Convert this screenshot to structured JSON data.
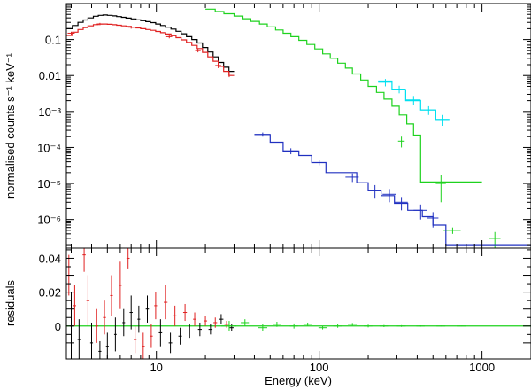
{
  "chart_data": {
    "type": "line",
    "xlabel": "Energy (keV)",
    "xscale": "log",
    "xlim": [
      2.8,
      2000
    ],
    "x_tick_labels": [
      {
        "value": 10,
        "label": "10"
      },
      {
        "value": 100,
        "label": "100"
      },
      {
        "value": 1000,
        "label": "1000"
      }
    ],
    "panels": [
      {
        "id": "spectrum",
        "ylabel": "normalised counts s⁻¹ keV⁻¹",
        "yscale": "log",
        "ylim": [
          1.6e-07,
          1.0
        ],
        "y_tick_labels": [
          {
            "value": 0.1,
            "label": "0.1"
          },
          {
            "value": 0.01,
            "label": "0.01"
          },
          {
            "value": 0.001,
            "label": "10⁻³"
          },
          {
            "value": 0.0001,
            "label": "10⁻⁴"
          },
          {
            "value": 1e-05,
            "label": "10⁻⁵"
          },
          {
            "value": 1e-06,
            "label": "10⁻⁶"
          }
        ],
        "series": [
          {
            "color": "#000000",
            "model_edges": [
              2.8,
              3.05,
              3.3,
              3.55,
              3.8,
              4.1,
              4.4,
              4.7,
              5.0,
              5.35,
              5.7,
              6.1,
              6.5,
              7.0,
              7.5,
              8.0,
              8.6,
              9.2,
              9.9,
              10.6,
              11.4,
              12.3,
              13.2,
              14.2,
              15.3,
              16.5,
              17.8,
              19.2,
              20.7,
              22.3,
              24.0,
              25.9,
              27.9,
              30.0
            ],
            "model_values": [
              0.2,
              0.245,
              0.3,
              0.35,
              0.4,
              0.445,
              0.47,
              0.48,
              0.47,
              0.455,
              0.435,
              0.415,
              0.395,
              0.375,
              0.355,
              0.335,
              0.315,
              0.295,
              0.27,
              0.245,
              0.22,
              0.195,
              0.17,
              0.145,
              0.12,
              0.1,
              0.08,
              0.06,
              0.045,
              0.033,
              0.023,
              0.017,
              0.013
            ]
          },
          {
            "color": "#e02020",
            "model_edges": [
              2.8,
              3.05,
              3.3,
              3.55,
              3.8,
              4.1,
              4.4,
              4.7,
              5.0,
              5.35,
              5.7,
              6.1,
              6.5,
              7.0,
              7.5,
              8.0,
              8.6,
              9.2,
              9.9,
              10.6,
              11.4,
              12.3,
              13.2,
              14.2,
              15.3,
              16.5,
              17.8,
              19.2,
              20.7,
              22.3,
              24.0,
              25.9,
              27.9,
              30.0
            ],
            "model_values": [
              0.13,
              0.16,
              0.19,
              0.215,
              0.24,
              0.26,
              0.27,
              0.27,
              0.265,
              0.258,
              0.25,
              0.24,
              0.23,
              0.22,
              0.21,
              0.2,
              0.19,
              0.18,
              0.168,
              0.155,
              0.142,
              0.128,
              0.113,
              0.098,
              0.083,
              0.069,
              0.056,
              0.044,
              0.033,
              0.025,
              0.018,
              0.013,
              0.01
            ],
            "points": [
              {
                "x": 3.0,
                "y": 0.15,
                "xerr": 0.15,
                "yerr": 0.015
              },
              {
                "x": 4.5,
                "y": 0.27,
                "xerr": 0.2,
                "yerr": 0.02
              },
              {
                "x": 7.0,
                "y": 0.22,
                "xerr": 0.3,
                "yerr": 0.02
              },
              {
                "x": 12.0,
                "y": 0.12,
                "xerr": 0.5,
                "yerr": 0.012
              },
              {
                "x": 18.0,
                "y": 0.05,
                "xerr": 0.7,
                "yerr": 0.006
              },
              {
                "x": 24.0,
                "y": 0.019,
                "xerr": 1.0,
                "yerr": 0.003
              },
              {
                "x": 28.0,
                "y": 0.011,
                "xerr": 1.0,
                "yerr": 0.002
              }
            ]
          },
          {
            "color": "#1ed21e",
            "model_edges": [
              20,
              23,
              26,
              30,
              34,
              38,
              43,
              48,
              54,
              60,
              67,
              75,
              84,
              94,
              105,
              117,
              130,
              145,
              160,
              180,
              200,
              225,
              250,
              280,
              310,
              345,
              380,
              420,
              1000
            ],
            "model_values": [
              0.7,
              0.6,
              0.52,
              0.45,
              0.38,
              0.32,
              0.27,
              0.225,
              0.185,
              0.15,
              0.12,
              0.095,
              0.073,
              0.055,
              0.04,
              0.03,
              0.022,
              0.016,
              0.011,
              0.0075,
              0.005,
              0.0034,
              0.0022,
              0.0014,
              0.0008,
              0.00045,
              0.00022,
              1.1e-05
            ],
            "points": [
              {
                "x": 320,
                "y": 0.00015,
                "xerr": 15,
                "yerr": 5e-05
              },
              {
                "x": 560,
                "y": 1e-05,
                "xerr": 40,
                "yerr": 7e-06
              },
              {
                "x": 660,
                "y": 5e-07,
                "xerr": 80,
                "yerr": 1e-07
              },
              {
                "x": 1200,
                "y": 3e-07,
                "xerr": 100,
                "yerr": 1.5e-07
              }
            ]
          },
          {
            "color": "#00e0f0",
            "model_edges": [
              230,
              280,
              340,
              420,
              520,
              630
            ],
            "model_values": [
              0.007,
              0.004,
              0.002,
              0.0011,
              0.0006
            ],
            "points": [
              {
                "x": 255,
                "y": 0.0065,
                "xerr": 25,
                "yerr": 0.0015
              },
              {
                "x": 310,
                "y": 0.0042,
                "xerr": 30,
                "yerr": 0.001
              },
              {
                "x": 380,
                "y": 0.0021,
                "xerr": 40,
                "yerr": 0.0006
              },
              {
                "x": 470,
                "y": 0.0011,
                "xerr": 50,
                "yerr": 0.0003
              },
              {
                "x": 575,
                "y": 0.0006,
                "xerr": 55,
                "yerr": 0.0002
              }
            ]
          },
          {
            "color": "#2030c0",
            "model_edges": [
              40,
              50,
              60,
              75,
              90,
              110,
              140,
              170,
              200,
              240,
              290,
              350,
              430,
              500,
              600,
              2000
            ],
            "model_values": [
              0.00023,
              0.00014,
              8e-05,
              6e-05,
              3.8e-05,
              2e-05,
              2e-05,
              1.05e-05,
              6.5e-06,
              4.6e-06,
              2.8e-06,
              1.8e-06,
              1.2e-06,
              7e-07,
              2e-07
            ],
            "points": [
              {
                "x": 45,
                "y": 0.00023,
                "xerr": 5,
                "yerr": 3e-05
              },
              {
                "x": 67,
                "y": 8e-05,
                "xerr": 7,
                "yerr": 1.5e-05
              },
              {
                "x": 100,
                "y": 3.8e-05,
                "xerr": 10,
                "yerr": 6e-06
              },
              {
                "x": 160,
                "y": 1.5e-05,
                "xerr": 15,
                "yerr": 4e-06
              },
              {
                "x": 220,
                "y": 6.5e-06,
                "xerr": 20,
                "yerr": 2.5e-06
              },
              {
                "x": 270,
                "y": 5e-06,
                "xerr": 25,
                "yerr": 2e-06
              },
              {
                "x": 320,
                "y": 3e-06,
                "xerr": 30,
                "yerr": 1.2e-06
              },
              {
                "x": 420,
                "y": 1.8e-06,
                "xerr": 40,
                "yerr": 8e-07
              },
              {
                "x": 500,
                "y": 1.1e-06,
                "xerr": 40,
                "yerr": 5e-07
              }
            ]
          }
        ]
      },
      {
        "id": "residuals",
        "ylabel": "residuals",
        "yscale": "linear",
        "ylim": [
          -0.0195,
          0.046
        ],
        "y_tick_labels": [
          {
            "value": 0.04,
            "label": "0.04"
          },
          {
            "value": 0.02,
            "label": "0.02"
          },
          {
            "value": 0,
            "label": "0"
          }
        ],
        "zero_line_color": "#1ed21e",
        "points": [
          {
            "x": 2.9,
            "y": 0.03,
            "yerr": 0.012,
            "xerr": 0.06,
            "color": "#e02020"
          },
          {
            "x": 3.0,
            "y": 0.0,
            "yerr": 0.02,
            "xerr": 0.06,
            "color": "#000000"
          },
          {
            "x": 3.15,
            "y": 0.012,
            "yerr": 0.012,
            "xerr": 0.06,
            "color": "#e02020"
          },
          {
            "x": 3.35,
            "y": -0.008,
            "yerr": 0.012,
            "xerr": 0.07,
            "color": "#000000"
          },
          {
            "x": 3.6,
            "y": 0.042,
            "yerr": 0.01,
            "xerr": 0.08,
            "color": "#e02020"
          },
          {
            "x": 3.8,
            "y": 0.015,
            "yerr": 0.015,
            "xerr": 0.08,
            "color": "#e02020"
          },
          {
            "x": 4.0,
            "y": -0.01,
            "yerr": 0.012,
            "xerr": 0.08,
            "color": "#000000"
          },
          {
            "x": 4.3,
            "y": 0.0,
            "yerr": 0.01,
            "xerr": 0.09,
            "color": "#e02020"
          },
          {
            "x": 4.5,
            "y": -0.015,
            "yerr": 0.006,
            "xerr": 0.09,
            "color": "#000000"
          },
          {
            "x": 4.8,
            "y": 0.005,
            "yerr": 0.01,
            "xerr": 0.1,
            "color": "#e02020"
          },
          {
            "x": 5.0,
            "y": -0.012,
            "yerr": 0.008,
            "xerr": 0.1,
            "color": "#000000"
          },
          {
            "x": 5.3,
            "y": 0.018,
            "yerr": 0.012,
            "xerr": 0.1,
            "color": "#e02020"
          },
          {
            "x": 5.6,
            "y": -0.005,
            "yerr": 0.01,
            "xerr": 0.1,
            "color": "#000000"
          },
          {
            "x": 6.0,
            "y": 0.024,
            "yerr": 0.014,
            "xerr": 0.12,
            "color": "#e02020"
          },
          {
            "x": 6.3,
            "y": 0.002,
            "yerr": 0.008,
            "xerr": 0.12,
            "color": "#000000"
          },
          {
            "x": 6.7,
            "y": 0.04,
            "yerr": 0.006,
            "xerr": 0.15,
            "color": "#e02020"
          },
          {
            "x": 7.0,
            "y": 0.008,
            "yerr": 0.01,
            "xerr": 0.15,
            "color": "#000000"
          },
          {
            "x": 7.4,
            "y": -0.008,
            "yerr": 0.008,
            "xerr": 0.15,
            "color": "#e02020"
          },
          {
            "x": 7.8,
            "y": 0.004,
            "yerr": 0.008,
            "xerr": 0.15,
            "color": "#000000"
          },
          {
            "x": 8.3,
            "y": -0.012,
            "yerr": 0.008,
            "xerr": 0.18,
            "color": "#e02020"
          },
          {
            "x": 8.8,
            "y": 0.01,
            "yerr": 0.008,
            "xerr": 0.2,
            "color": "#000000"
          },
          {
            "x": 9.3,
            "y": -0.006,
            "yerr": 0.007,
            "xerr": 0.2,
            "color": "#e02020"
          },
          {
            "x": 9.9,
            "y": 0.012,
            "yerr": 0.008,
            "xerr": 0.2,
            "color": "#e02020"
          },
          {
            "x": 10.6,
            "y": -0.004,
            "yerr": 0.008,
            "xerr": 0.25,
            "color": "#000000"
          },
          {
            "x": 11.4,
            "y": 0.014,
            "yerr": 0.01,
            "xerr": 0.3,
            "color": "#e02020"
          },
          {
            "x": 12.2,
            "y": -0.01,
            "yerr": 0.006,
            "xerr": 0.3,
            "color": "#000000"
          },
          {
            "x": 13.0,
            "y": 0.006,
            "yerr": 0.006,
            "xerr": 0.3,
            "color": "#e02020"
          },
          {
            "x": 14.0,
            "y": -0.006,
            "yerr": 0.005,
            "xerr": 0.35,
            "color": "#000000"
          },
          {
            "x": 15.0,
            "y": 0.008,
            "yerr": 0.005,
            "xerr": 0.4,
            "color": "#e02020"
          },
          {
            "x": 16.0,
            "y": -0.003,
            "yerr": 0.004,
            "xerr": 0.4,
            "color": "#000000"
          },
          {
            "x": 17.2,
            "y": 0.004,
            "yerr": 0.004,
            "xerr": 0.4,
            "color": "#e02020"
          },
          {
            "x": 18.5,
            "y": -0.002,
            "yerr": 0.004,
            "xerr": 0.5,
            "color": "#000000"
          },
          {
            "x": 20.0,
            "y": 0.003,
            "yerr": 0.003,
            "xerr": 0.5,
            "color": "#e02020"
          },
          {
            "x": 21.5,
            "y": -0.002,
            "yerr": 0.003,
            "xerr": 0.6,
            "color": "#000000"
          },
          {
            "x": 23.0,
            "y": 0.002,
            "yerr": 0.003,
            "xerr": 0.6,
            "color": "#e02020"
          },
          {
            "x": 25.0,
            "y": 0.004,
            "yerr": 0.003,
            "xerr": 0.8,
            "color": "#000000"
          },
          {
            "x": 27.0,
            "y": 0.001,
            "yerr": 0.002,
            "xerr": 0.8,
            "color": "#e02020"
          },
          {
            "x": 29.0,
            "y": -0.001,
            "yerr": 0.002,
            "xerr": 0.8,
            "color": "#000000"
          },
          {
            "x": 28.0,
            "y": 0.0,
            "yerr": 0.003,
            "xerr": 3.0,
            "color": "#1ed21e"
          },
          {
            "x": 35.0,
            "y": 0.002,
            "yerr": 0.002,
            "xerr": 2.0,
            "color": "#1ed21e"
          },
          {
            "x": 45.0,
            "y": -0.001,
            "yerr": 0.002,
            "xerr": 3.0,
            "color": "#1ed21e"
          },
          {
            "x": 55.0,
            "y": 0.001,
            "yerr": 0.0015,
            "xerr": 3.0,
            "color": "#1ed21e"
          },
          {
            "x": 70.0,
            "y": 0.0,
            "yerr": 0.0015,
            "xerr": 4.0,
            "color": "#1ed21e"
          },
          {
            "x": 85.0,
            "y": 0.001,
            "yerr": 0.001,
            "xerr": 5.0,
            "color": "#1ed21e"
          },
          {
            "x": 105.0,
            "y": -0.001,
            "yerr": 0.001,
            "xerr": 6.0,
            "color": "#1ed21e"
          },
          {
            "x": 130.0,
            "y": 0.0,
            "yerr": 0.001,
            "xerr": 8.0,
            "color": "#1ed21e"
          },
          {
            "x": 160.0,
            "y": 0.001,
            "yerr": 0.0008,
            "xerr": 10.0,
            "color": "#1ed21e"
          },
          {
            "x": 200.0,
            "y": 0.0,
            "yerr": 0.0008,
            "xerr": 12.0,
            "color": "#1ed21e"
          },
          {
            "x": 250.0,
            "y": 0.0,
            "yerr": 0.0006,
            "xerr": 15.0,
            "color": "#1ed21e"
          },
          {
            "x": 320.0,
            "y": 0.0,
            "yerr": 0.0005,
            "xerr": 20.0,
            "color": "#1ed21e"
          },
          {
            "x": 420.0,
            "y": 0.0,
            "yerr": 0.0004,
            "xerr": 25.0,
            "color": "#1ed21e"
          },
          {
            "x": 560.0,
            "y": 0.0,
            "yerr": 0.0003,
            "xerr": 35.0,
            "color": "#1ed21e"
          },
          {
            "x": 750.0,
            "y": 0.0,
            "yerr": 0.0002,
            "xerr": 50.0,
            "color": "#1ed21e"
          }
        ]
      }
    ]
  }
}
